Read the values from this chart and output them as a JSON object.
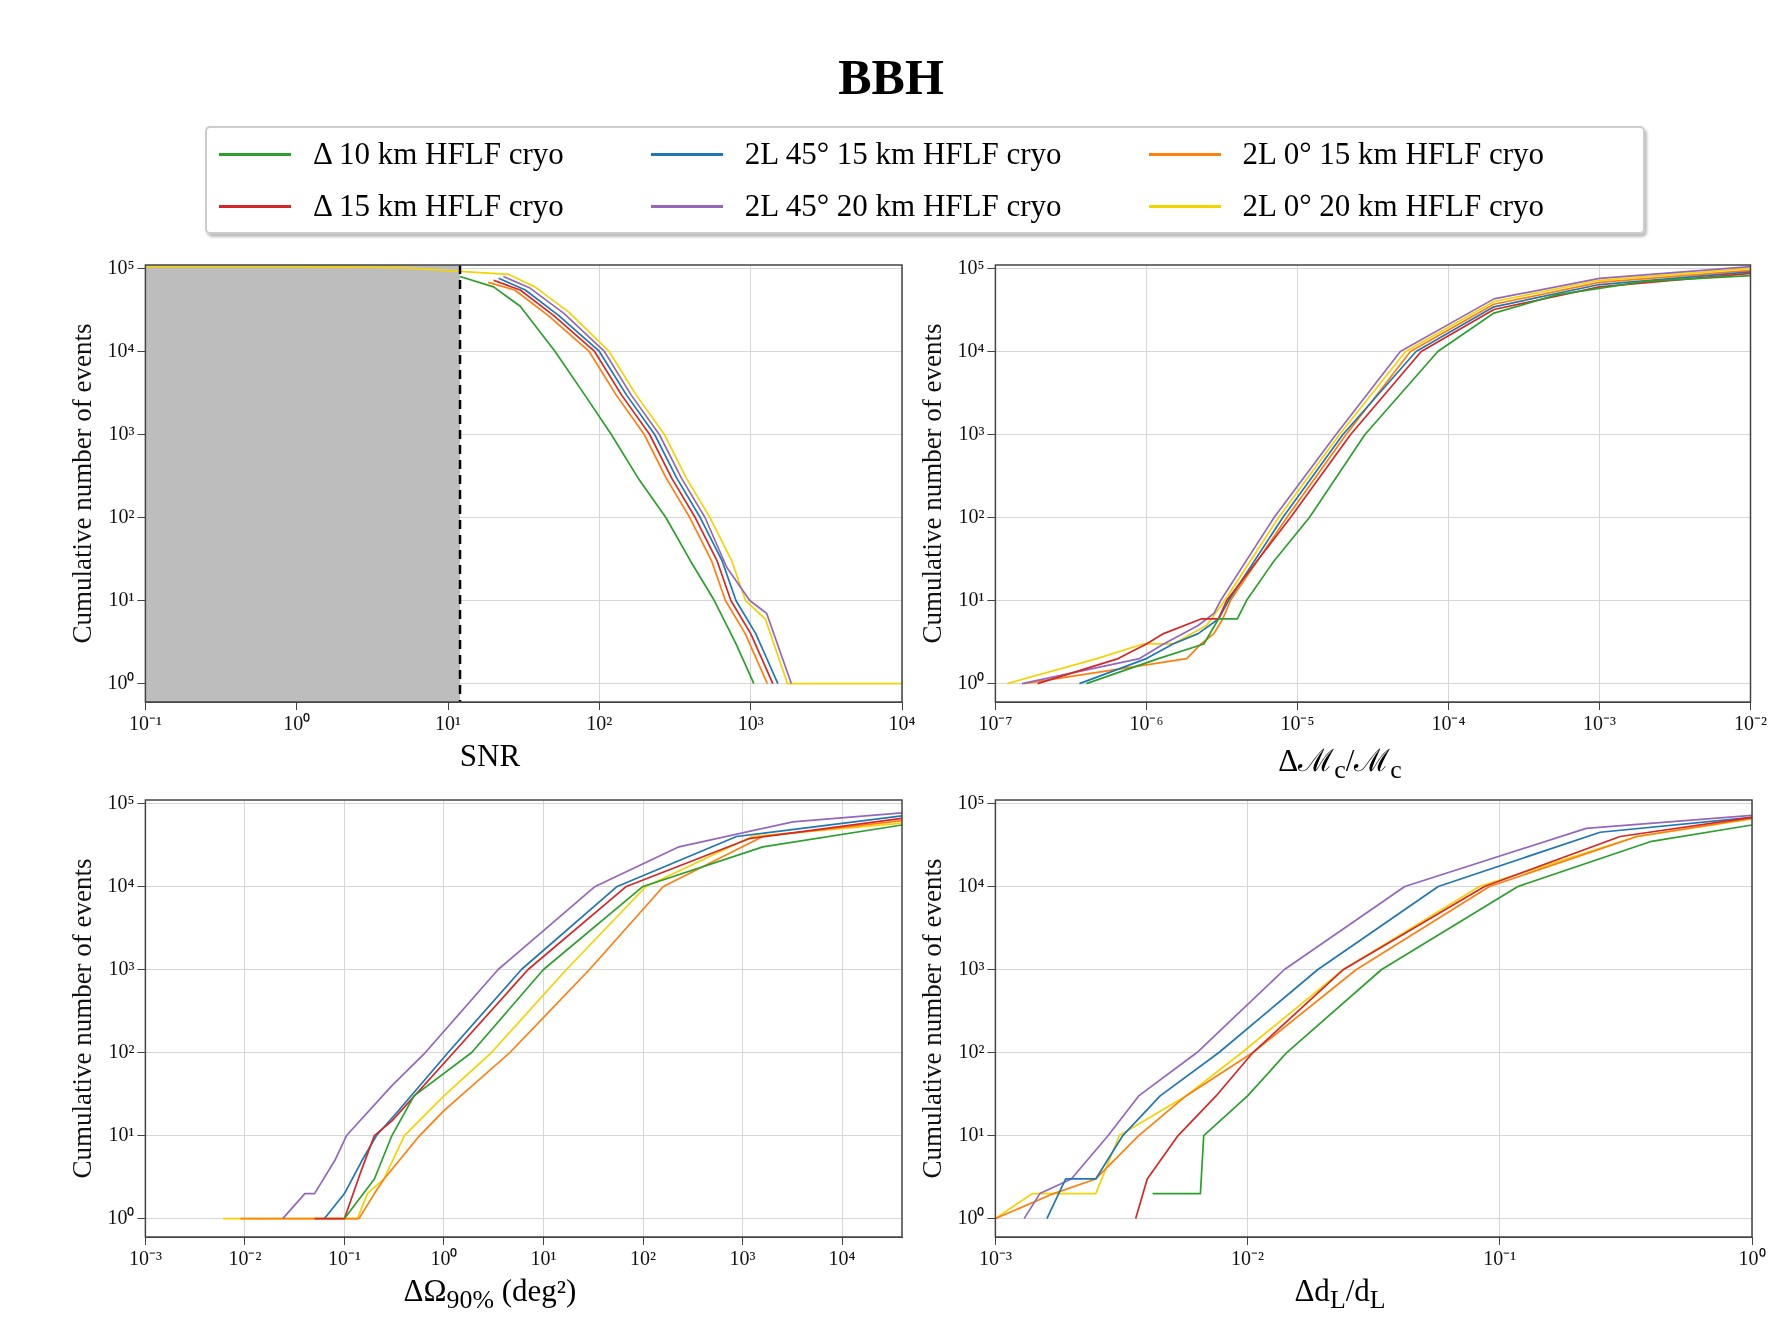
{
  "chart_data": [
    {
      "type": "line",
      "title": "BBH",
      "xlabel": "SNR",
      "ylabel": "Cumulative number of events",
      "log": "xy",
      "grid": true,
      "legend": "top",
      "xlim": [
        0.1,
        10000
      ],
      "ylim": [
        0.6,
        110000
      ],
      "xticks": [
        {
          "value": 0.1,
          "label": "10⁻¹"
        },
        {
          "value": 1,
          "label": "10⁰"
        },
        {
          "value": 10,
          "label": "10¹"
        },
        {
          "value": 100,
          "label": "10²"
        },
        {
          "value": 1000,
          "label": "10³"
        },
        {
          "value": 10000,
          "label": "10⁴"
        }
      ],
      "yticks": [
        {
          "value": 1,
          "label": "10⁰"
        },
        {
          "value": 10,
          "label": "10¹"
        },
        {
          "value": 100,
          "label": "10²"
        },
        {
          "value": 1000,
          "label": "10³"
        },
        {
          "value": 10000,
          "label": "10⁴"
        },
        {
          "value": 100000,
          "label": "10⁵"
        }
      ],
      "bands": [
        {
          "axis": "x",
          "from": 0.1,
          "to": 12,
          "color": "#bdbdbd"
        }
      ],
      "ref_lines": [
        {
          "axis": "x",
          "value": 12,
          "color": "#000000",
          "line_style": "dashed"
        }
      ],
      "series": [
        {
          "name": "Δ 10 km HFLF cryo",
          "color": "#2ca02c",
          "x": [
            12,
            20,
            30,
            51,
            80,
            120,
            180,
            275,
            400,
            575,
            800,
            1050
          ],
          "values": [
            80000,
            60000,
            35000,
            10000,
            3000,
            1000,
            300,
            100,
            30,
            10,
            3,
            1
          ]
        },
        {
          "name": "Δ 15 km HFLF cryo",
          "color": "#d62728",
          "x": [
            20,
            30,
            50,
            93,
            140,
            215,
            300,
            430,
            600,
            740,
            1000,
            1400
          ],
          "values": [
            72000,
            55000,
            27000,
            10000,
            3000,
            1000,
            300,
            100,
            30,
            10,
            4,
            1
          ]
        },
        {
          "name": "2L 45° 15 km HFLF cryo",
          "color": "#1f77b4",
          "x": [
            21.6,
            32.4,
            54,
            100,
            151,
            232,
            324,
            464,
            648,
            799,
            1080,
            1512
          ],
          "values": [
            76000,
            55000,
            27000,
            10000,
            3000,
            1000,
            300,
            100,
            30,
            10,
            4,
            1
          ]
        },
        {
          "name": "2L 45° 20 km HFLF cryo",
          "color": "#9467bd",
          "x": [
            23.2,
            34.8,
            58,
            108,
            162,
            249,
            348,
            499,
            696,
            986,
            1276,
            1856
          ],
          "values": [
            80000,
            58000,
            29000,
            10000,
            3000,
            1000,
            300,
            100,
            25,
            10,
            7,
            1
          ]
        },
        {
          "name": "2L 0° 15 km HFLF cryo",
          "color": "#ff7f0e",
          "x": [
            18.4,
            27.6,
            46,
            85.6,
            129,
            198,
            276,
            396,
            552,
            681,
            920,
            1288
          ],
          "values": [
            68000,
            55000,
            27000,
            10000,
            3000,
            1000,
            300,
            100,
            30,
            10,
            4,
            1
          ]
        },
        {
          "name": "2L 0° 20 km HFLF cryo",
          "color": "#f5d300",
          "x": [
            0.1,
            1,
            5,
            12,
            25,
            37.5,
            62.5,
            116,
            175,
            269,
            375,
            538,
            750,
            925,
            1250,
            1750,
            10000
          ],
          "values": [
            105000,
            105000,
            102000,
            92000,
            85000,
            60000,
            30000,
            10000,
            3000,
            1000,
            300,
            100,
            30,
            10,
            6,
            1,
            1
          ]
        }
      ]
    },
    {
      "type": "line",
      "xlabel": "Δℳ$_{c}$/ℳ$_{c}$",
      "ylabel": "Cumulative number of events",
      "log": "xy",
      "grid": true,
      "xlim": [
        1e-07,
        0.01
      ],
      "ylim": [
        0.6,
        110000
      ],
      "xticks": [
        {
          "value": 1e-07,
          "label": "10⁻⁷"
        },
        {
          "value": 1e-06,
          "label": "10⁻⁶"
        },
        {
          "value": 1e-05,
          "label": "10⁻⁵"
        },
        {
          "value": 0.0001,
          "label": "10⁻⁴"
        },
        {
          "value": 0.001,
          "label": "10⁻³"
        },
        {
          "value": 0.01,
          "label": "10⁻²"
        }
      ],
      "yticks": [
        {
          "value": 1,
          "label": "10⁰"
        },
        {
          "value": 10,
          "label": "10¹"
        },
        {
          "value": 100,
          "label": "10²"
        },
        {
          "value": 1000,
          "label": "10³"
        },
        {
          "value": 10000,
          "label": "10⁴"
        },
        {
          "value": 100000,
          "label": "10⁵"
        }
      ],
      "series": [
        {
          "color": "#2ca02c",
          "x": [
            4e-07,
            1.2e-06,
            2.4e-06,
            3e-06,
            4e-06,
            4.6e-06,
            7e-06,
            1.2e-05,
            2.8e-05,
            8.5e-05,
            0.0002,
            0.00052,
            0.002,
            0.01
          ],
          "values": [
            1,
            2,
            3,
            6,
            6,
            10,
            30,
            100,
            1000,
            10000,
            29000,
            48000,
            70000,
            82000
          ]
        },
        {
          "color": "#d62728",
          "x": [
            1.9e-07,
            6.5e-07,
            1e-06,
            1.3e-06,
            2.3e-06,
            3e-06,
            3.4e-06,
            9e-06,
            2.25e-05,
            6.6e-05,
            0.0002,
            0.001,
            0.01
          ],
          "values": [
            1,
            2,
            3,
            4,
            6,
            6,
            10,
            100,
            1000,
            10000,
            32000,
            60000,
            87000
          ]
        },
        {
          "color": "#1f77b4",
          "x": [
            3.6e-07,
            1e-06,
            1.5e-06,
            2.2e-06,
            3e-06,
            3.5e-06,
            8e-06,
            2e-05,
            6.1e-05,
            0.0002,
            0.001,
            0.01
          ],
          "values": [
            1,
            2,
            3,
            4,
            6,
            10,
            100,
            1000,
            10000,
            34500,
            64000,
            91000
          ]
        },
        {
          "color": "#9467bd",
          "x": [
            1.5e-07,
            9e-07,
            1.3e-06,
            2.2e-06,
            2.8e-06,
            3.1e-06,
            7e-06,
            1.8e-05,
            4.8e-05,
            0.0002,
            0.001,
            0.01
          ],
          "values": [
            1,
            2,
            3,
            5,
            7,
            10,
            100,
            1000,
            10000,
            43000,
            76000,
            105000
          ]
        },
        {
          "color": "#ff7f0e",
          "x": [
            1.55e-07,
            1.85e-06,
            2.3e-06,
            2.8e-06,
            3.2e-06,
            3.6e-06,
            8.5e-06,
            2.1e-05,
            5.6e-05,
            0.0002,
            0.001,
            0.01
          ],
          "values": [
            1,
            2,
            3,
            4,
            6,
            10,
            100,
            1000,
            10000,
            37000,
            68000,
            95000
          ]
        },
        {
          "color": "#f5d300",
          "x": [
            1.2e-07,
            4.7e-07,
            9.5e-07,
            1.5e-06,
            2.5e-06,
            3.3e-06,
            7.5e-06,
            1.9e-05,
            5.2e-05,
            0.0002,
            0.001,
            0.01
          ],
          "values": [
            1,
            2,
            3,
            3,
            5,
            10,
            100,
            1000,
            10000,
            40000,
            72000,
            100000
          ]
        }
      ]
    },
    {
      "type": "line",
      "xlabel": "ΔΩ$_{90%}$ (deg²)",
      "ylabel": "Cumulative number of events",
      "log": "xy",
      "grid": true,
      "xlim": [
        0.001,
        40000
      ],
      "ylim": [
        0.6,
        110000
      ],
      "xticks": [
        {
          "value": 0.001,
          "label": "10⁻³"
        },
        {
          "value": 0.01,
          "label": "10⁻²"
        },
        {
          "value": 0.1,
          "label": "10⁻¹"
        },
        {
          "value": 1,
          "label": "10⁰"
        },
        {
          "value": 10,
          "label": "10¹"
        },
        {
          "value": 100,
          "label": "10²"
        },
        {
          "value": 1000,
          "label": "10³"
        },
        {
          "value": 10000,
          "label": "10⁴"
        }
      ],
      "yticks": [
        {
          "value": 1,
          "label": "10⁰"
        },
        {
          "value": 10,
          "label": "10¹"
        },
        {
          "value": 100,
          "label": "10²"
        },
        {
          "value": 1000,
          "label": "10³"
        },
        {
          "value": 10000,
          "label": "10⁴"
        },
        {
          "value": 100000,
          "label": "10⁵"
        }
      ],
      "series": [
        {
          "color": "#2ca02c",
          "x": [
            0.1,
            0.2,
            0.3,
            0.5,
            1.9,
            10,
            100,
            1600,
            40000
          ],
          "values": [
            1,
            3,
            10,
            30,
            100,
            1000,
            10000,
            30000,
            55000
          ]
        },
        {
          "color": "#d62728",
          "x": [
            0.05,
            0.1,
            0.15,
            0.2,
            0.3,
            1.25,
            7,
            68,
            1200,
            40000
          ],
          "values": [
            1,
            1,
            4,
            10,
            15,
            100,
            1000,
            10000,
            38000,
            66000
          ]
        },
        {
          "color": "#1f77b4",
          "x": [
            0.063,
            0.1,
            0.15,
            0.21,
            0.35,
            1.1,
            6,
            55,
            870,
            40000
          ],
          "values": [
            1,
            2,
            5,
            10,
            20,
            100,
            1000,
            10000,
            40000,
            71000
          ]
        },
        {
          "color": "#9467bd",
          "x": [
            0.024,
            0.04,
            0.05,
            0.08,
            0.105,
            0.3,
            0.65,
            3.5,
            33,
            230,
            3200,
            40000
          ],
          "values": [
            1,
            2,
            2,
            5,
            10,
            40,
            100,
            1000,
            10000,
            30000,
            60000,
            77000
          ]
        },
        {
          "color": "#ff7f0e",
          "x": [
            0.009,
            0.14,
            0.2,
            0.25,
            0.57,
            1,
            4.6,
            29,
            160,
            1600,
            40000
          ],
          "values": [
            1,
            1,
            2,
            3,
            10,
            20,
            100,
            1000,
            10000,
            40000,
            62000
          ]
        },
        {
          "color": "#f5d300",
          "x": [
            0.006,
            0.135,
            0.17,
            0.25,
            0.4,
            1,
            3,
            17,
            107,
            1250,
            40000
          ],
          "values": [
            1,
            1,
            2,
            3,
            10,
            30,
            100,
            1000,
            10000,
            40000,
            58000
          ]
        }
      ]
    },
    {
      "type": "line",
      "xlabel": "Δd$_{L}$/d$_{L}$",
      "ylabel": "Cumulative number of events",
      "log": "xy",
      "grid": true,
      "xlim": [
        0.001,
        1
      ],
      "ylim": [
        0.6,
        110000
      ],
      "xticks": [
        {
          "value": 0.001,
          "label": "10⁻³"
        },
        {
          "value": 0.01,
          "label": "10⁻²"
        },
        {
          "value": 0.1,
          "label": "10⁻¹"
        },
        {
          "value": 1,
          "label": "10⁰"
        }
      ],
      "yticks": [
        {
          "value": 1,
          "label": "10⁰"
        },
        {
          "value": 10,
          "label": "10¹"
        },
        {
          "value": 100,
          "label": "10²"
        },
        {
          "value": 1000,
          "label": "10³"
        },
        {
          "value": 10000,
          "label": "10⁴"
        },
        {
          "value": 100000,
          "label": "10⁵"
        }
      ],
      "series": [
        {
          "color": "#2ca02c",
          "x": [
            0.0042,
            0.0065,
            0.0067,
            0.01,
            0.0143,
            0.034,
            0.118,
            0.4,
            1
          ],
          "values": [
            2,
            2,
            10,
            30,
            100,
            1000,
            10000,
            35000,
            55000
          ]
        },
        {
          "color": "#d62728",
          "x": [
            0.0036,
            0.004,
            0.0053,
            0.0075,
            0.0105,
            0.024,
            0.087,
            0.3,
            1
          ],
          "values": [
            1,
            3,
            10,
            30,
            100,
            1000,
            10000,
            40000,
            68000
          ]
        },
        {
          "color": "#1f77b4",
          "x": [
            0.0016,
            0.0019,
            0.0025,
            0.0032,
            0.0045,
            0.0077,
            0.019,
            0.057,
            0.25,
            1
          ],
          "values": [
            1,
            3,
            3,
            10,
            30,
            100,
            1000,
            10000,
            45000,
            68000
          ]
        },
        {
          "color": "#9467bd",
          "x": [
            0.0013,
            0.0015,
            0.002,
            0.0028,
            0.0037,
            0.0063,
            0.014,
            0.042,
            0.22,
            1
          ],
          "values": [
            1,
            2,
            3,
            10,
            30,
            100,
            1000,
            10000,
            50000,
            72000
          ]
        },
        {
          "color": "#ff7f0e",
          "x": [
            0.001,
            0.0017,
            0.0025,
            0.0037,
            0.0057,
            0.0105,
            0.027,
            0.091,
            0.35,
            1
          ],
          "values": [
            1,
            2,
            3,
            10,
            30,
            100,
            1000,
            10000,
            40000,
            66000
          ]
        },
        {
          "color": "#f5d300",
          "x": [
            0.001,
            0.0014,
            0.0025,
            0.0031,
            0.0057,
            0.0095,
            0.024,
            0.083,
            0.35,
            1
          ],
          "values": [
            1,
            2,
            2,
            10,
            30,
            100,
            1000,
            10000,
            40000,
            65000
          ]
        }
      ]
    }
  ]
}
